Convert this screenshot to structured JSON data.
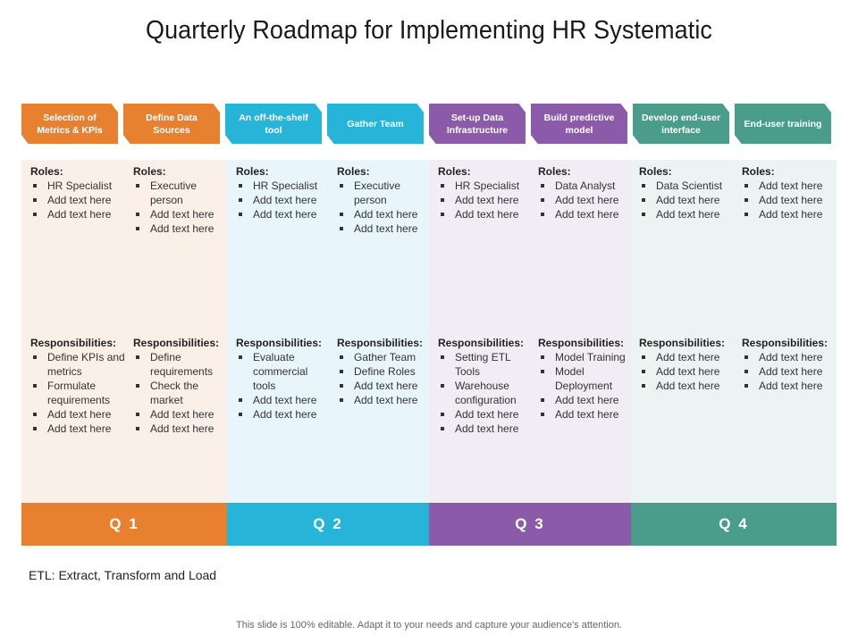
{
  "title": "Quarterly Roadmap for Implementing HR Systematic",
  "colors": {
    "orange": "#e8812f",
    "blue": "#26b4d8",
    "purple": "#8b5aa8",
    "teal": "#4a9d8a"
  },
  "steps": [
    {
      "label": "Selection of Metrics & KPIs",
      "color": "#e8812f",
      "roles_heading": "Roles:",
      "roles": [
        "HR Specialist",
        "Add text here",
        "Add text here"
      ],
      "resp_heading": "Responsibilities:",
      "responsibilities": [
        "Define KPIs and metrics",
        "Formulate requirements",
        "Add text here",
        "Add text here"
      ]
    },
    {
      "label": "Define Data Sources",
      "color": "#e8812f",
      "roles_heading": "Roles:",
      "roles": [
        "Executive person",
        "Add text here",
        "Add text here"
      ],
      "resp_heading": "Responsibilities:",
      "responsibilities": [
        "Define requirements",
        "Check the market",
        "Add text here",
        "Add text here"
      ]
    },
    {
      "label": "An off-the-shelf tool",
      "color": "#26b4d8",
      "roles_heading": "Roles:",
      "roles": [
        "HR Specialist",
        "Add text here",
        "Add text here"
      ],
      "resp_heading": "Responsibilities:",
      "responsibilities": [
        "Evaluate commercial tools",
        "Add text here",
        "Add text here"
      ]
    },
    {
      "label": "Gather Team",
      "color": "#26b4d8",
      "roles_heading": "Roles:",
      "roles": [
        "Executive person",
        "Add text here",
        "Add text here"
      ],
      "resp_heading": "Responsibilities:",
      "responsibilities": [
        "Gather Team",
        "Define Roles",
        "Add text here",
        "Add text here"
      ]
    },
    {
      "label": "Set-up Data Infrastructure",
      "color": "#8b5aa8",
      "roles_heading": "Roles:",
      "roles": [
        "HR Specialist",
        "Add text here",
        "Add text here"
      ],
      "resp_heading": "Responsibilities:",
      "responsibilities": [
        "Setting ETL Tools",
        "Warehouse configuration",
        "Add text here",
        "Add text here"
      ]
    },
    {
      "label": "Build predictive model",
      "color": "#8b5aa8",
      "roles_heading": "Roles:",
      "roles": [
        "Data Analyst",
        "Add text here",
        "Add text here"
      ],
      "resp_heading": "Responsibilities:",
      "responsibilities": [
        "Model Training",
        "Model Deployment",
        "Add text here",
        "Add text here"
      ]
    },
    {
      "label": "Develop end-user interface",
      "color": "#4a9d8a",
      "roles_heading": "Roles:",
      "roles": [
        "Data Scientist",
        "Add text here",
        "Add text here"
      ],
      "resp_heading": "Responsibilities:",
      "responsibilities": [
        "Add text here",
        "Add text here",
        "Add text here"
      ]
    },
    {
      "label": "End-user training",
      "color": "#4a9d8a",
      "roles_heading": "Roles:",
      "roles": [
        "Add text here",
        "Add text here",
        "Add text here"
      ],
      "resp_heading": "Responsibilities:",
      "responsibilities": [
        "Add text here",
        "Add text here",
        "Add text here"
      ]
    }
  ],
  "quarters": [
    {
      "label": "Q 1",
      "color": "#e8812f",
      "bg": "#fbf0e8"
    },
    {
      "label": "Q 2",
      "color": "#26b4d8",
      "bg": "#e8f6fb"
    },
    {
      "label": "Q 3",
      "color": "#8b5aa8",
      "bg": "#f1edf5"
    },
    {
      "label": "Q 4",
      "color": "#4a9d8a",
      "bg": "#ebf4f3"
    }
  ],
  "note": "ETL: Extract, Transform and Load",
  "footer": "This slide is 100% editable. Adapt it to your needs and capture your audience's attention."
}
